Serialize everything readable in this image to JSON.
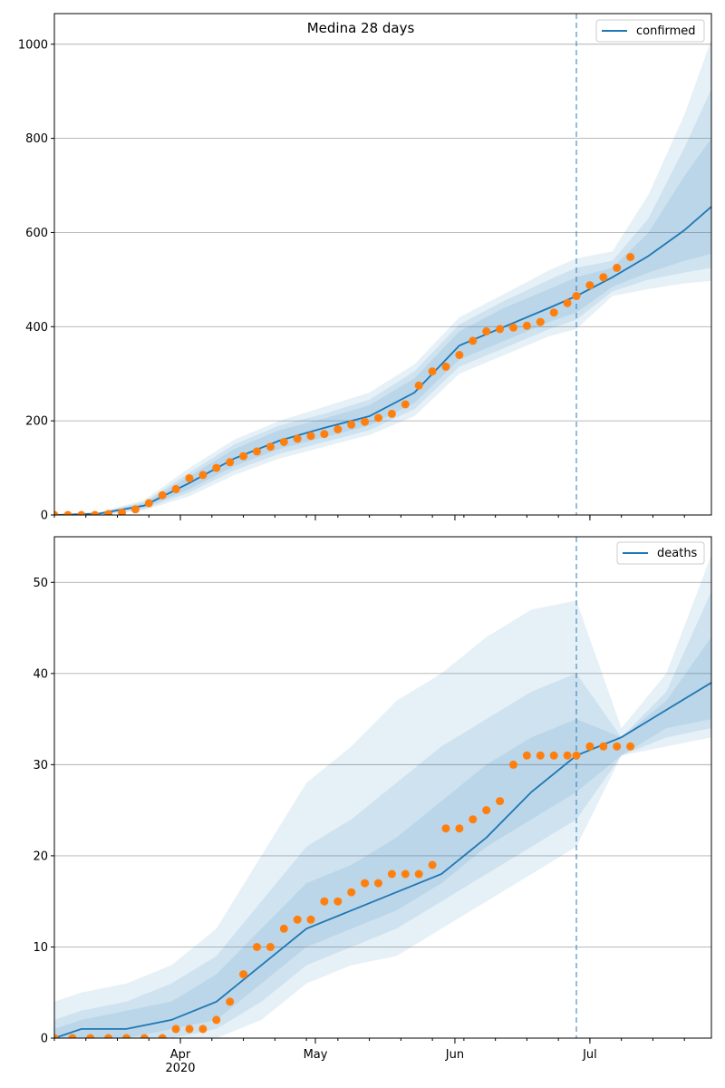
{
  "colors": {
    "model_line": "#1f77b4",
    "observed_points": "#ff7f0e",
    "band": "#1f77b4",
    "forecast_line": "#1f77b4",
    "grid": "#b0b0b0"
  },
  "chart_data": [
    {
      "type": "line",
      "title": "Medina 28 days",
      "legend": {
        "entries": [
          "confirmed"
        ],
        "placement": "top-right"
      },
      "x_range": [
        "2020-03-04",
        "2020-07-28"
      ],
      "x_ticks": [
        {
          "date": "2020-04-01",
          "label": "Apr",
          "sublabel": "2020"
        },
        {
          "date": "2020-05-01",
          "label": "May"
        },
        {
          "date": "2020-06-01",
          "label": "Jun"
        },
        {
          "date": "2020-07-01",
          "label": "Jul"
        }
      ],
      "ylim": [
        0,
        1065
      ],
      "y_ticks": [
        0,
        200,
        400,
        600,
        800,
        1000
      ],
      "grid": "horizontal",
      "forecast_start": "2020-06-28",
      "model_series": {
        "name": "confirmed",
        "x": [
          "2020-03-04",
          "2020-03-14",
          "2020-03-24",
          "2020-04-03",
          "2020-04-13",
          "2020-04-23",
          "2020-05-03",
          "2020-05-13",
          "2020-05-23",
          "2020-06-02",
          "2020-06-12",
          "2020-06-22",
          "2020-06-28",
          "2020-07-06",
          "2020-07-14",
          "2020-07-22",
          "2020-07-28"
        ],
        "y": [
          0,
          3,
          20,
          68,
          120,
          158,
          185,
          210,
          260,
          360,
          400,
          440,
          465,
          505,
          550,
          605,
          655
        ],
        "bands": [
          {
            "low": [
              0,
              0,
              10,
              40,
              85,
              120,
              145,
              170,
              210,
              300,
              340,
              380,
              395,
              465,
              480,
              492,
              497
            ],
            "high": [
              0,
              6,
              32,
              100,
              160,
              200,
              230,
              260,
              320,
              420,
              470,
              520,
              545,
              560,
              680,
              850,
              1010
            ]
          },
          {
            "low": [
              0,
              0,
              13,
              48,
              95,
              130,
              155,
              180,
              225,
              315,
              355,
              395,
              415,
              475,
              500,
              515,
              525
            ],
            "high": [
              0,
              5,
              28,
              90,
              150,
              190,
              215,
              245,
              305,
              405,
              455,
              500,
              525,
              540,
              630,
              780,
              905
            ]
          },
          {
            "low": [
              0,
              1,
              16,
              55,
              104,
              140,
              165,
              190,
              238,
              330,
              370,
              410,
              430,
              485,
              515,
              540,
              555
            ],
            "high": [
              0,
              4,
              25,
              82,
              140,
              180,
              205,
              233,
              290,
              390,
              440,
              480,
              505,
              525,
              600,
              720,
              800
            ]
          }
        ]
      },
      "observed": {
        "x": [
          "2020-03-04",
          "2020-03-07",
          "2020-03-10",
          "2020-03-13",
          "2020-03-16",
          "2020-03-19",
          "2020-03-22",
          "2020-03-25",
          "2020-03-28",
          "2020-03-31",
          "2020-04-03",
          "2020-04-06",
          "2020-04-09",
          "2020-04-12",
          "2020-04-15",
          "2020-04-18",
          "2020-04-21",
          "2020-04-24",
          "2020-04-27",
          "2020-04-30",
          "2020-05-03",
          "2020-05-06",
          "2020-05-09",
          "2020-05-12",
          "2020-05-15",
          "2020-05-18",
          "2020-05-21",
          "2020-05-24",
          "2020-05-27",
          "2020-05-30",
          "2020-06-02",
          "2020-06-05",
          "2020-06-08",
          "2020-06-11",
          "2020-06-14",
          "2020-06-17",
          "2020-06-20",
          "2020-06-23",
          "2020-06-26",
          "2020-06-28",
          "2020-07-01",
          "2020-07-04",
          "2020-07-07",
          "2020-07-10"
        ],
        "y": [
          0,
          0,
          0,
          0,
          2,
          5,
          12,
          25,
          42,
          55,
          78,
          85,
          100,
          112,
          125,
          135,
          145,
          155,
          162,
          168,
          172,
          182,
          192,
          198,
          206,
          215,
          235,
          275,
          305,
          315,
          340,
          370,
          390,
          395,
          398,
          402,
          410,
          430,
          450,
          465,
          488,
          505,
          525,
          548
        ]
      }
    },
    {
      "type": "line",
      "title": "",
      "legend": {
        "entries": [
          "deaths"
        ],
        "placement": "top-right"
      },
      "x_range": [
        "2020-03-04",
        "2020-07-28"
      ],
      "x_ticks": [
        {
          "date": "2020-04-01",
          "label": "Apr",
          "sublabel": "2020"
        },
        {
          "date": "2020-05-01",
          "label": "May"
        },
        {
          "date": "2020-06-01",
          "label": "Jun"
        },
        {
          "date": "2020-07-01",
          "label": "Jul"
        }
      ],
      "ylim": [
        0,
        55
      ],
      "y_ticks": [
        0,
        10,
        20,
        30,
        40,
        50
      ],
      "grid": "horizontal",
      "forecast_start": "2020-06-28",
      "model_series": {
        "name": "deaths",
        "x": [
          "2020-03-04",
          "2020-03-10",
          "2020-03-20",
          "2020-03-30",
          "2020-04-09",
          "2020-04-19",
          "2020-04-29",
          "2020-05-09",
          "2020-05-19",
          "2020-05-29",
          "2020-06-08",
          "2020-06-18",
          "2020-06-28",
          "2020-07-08",
          "2020-07-18",
          "2020-07-28"
        ],
        "y": [
          0,
          1,
          1,
          2,
          4,
          8,
          12,
          14,
          16,
          18,
          22,
          27,
          31,
          33,
          36,
          39
        ],
        "bands": [
          {
            "low": [
              0,
              0,
              0,
              0,
              0,
              2,
              6,
              8,
              9,
              12,
              15,
              18,
              21,
              31,
              32,
              33
            ],
            "high": [
              4,
              5,
              6,
              8,
              12,
              20,
              28,
              32,
              37,
              40,
              44,
              47,
              48,
              34,
              40,
              53
            ]
          },
          {
            "low": [
              0,
              0,
              0,
              0,
              1,
              4,
              8,
              10,
              12,
              15,
              18,
              21,
              24,
              31,
              33,
              34
            ],
            "high": [
              2,
              3,
              4,
              6,
              9,
              15,
              21,
              24,
              28,
              32,
              35,
              38,
              40,
              33,
              38,
              49
            ]
          },
          {
            "low": [
              0,
              0,
              0,
              1,
              2,
              6,
              10,
              12,
              14,
              17,
              21,
              24,
              27,
              31,
              34,
              35
            ],
            "high": [
              1,
              2,
              3,
              4,
              7,
              12,
              17,
              19,
              22,
              26,
              30,
              33,
              35,
              33,
              37,
              44
            ]
          }
        ]
      },
      "observed": {
        "x": [
          "2020-03-04",
          "2020-03-08",
          "2020-03-12",
          "2020-03-16",
          "2020-03-20",
          "2020-03-24",
          "2020-03-28",
          "2020-03-31",
          "2020-04-03",
          "2020-04-06",
          "2020-04-09",
          "2020-04-12",
          "2020-04-15",
          "2020-04-18",
          "2020-04-21",
          "2020-04-24",
          "2020-04-27",
          "2020-04-30",
          "2020-05-03",
          "2020-05-06",
          "2020-05-09",
          "2020-05-12",
          "2020-05-15",
          "2020-05-18",
          "2020-05-21",
          "2020-05-24",
          "2020-05-27",
          "2020-05-30",
          "2020-06-02",
          "2020-06-05",
          "2020-06-08",
          "2020-06-11",
          "2020-06-14",
          "2020-06-17",
          "2020-06-20",
          "2020-06-23",
          "2020-06-26",
          "2020-06-28",
          "2020-07-01",
          "2020-07-04",
          "2020-07-07",
          "2020-07-10"
        ],
        "y": [
          0,
          0,
          0,
          0,
          0,
          0,
          0,
          1,
          1,
          1,
          2,
          4,
          7,
          10,
          10,
          12,
          13,
          13,
          15,
          15,
          16,
          17,
          17,
          18,
          18,
          18,
          19,
          23,
          23,
          24,
          25,
          26,
          30,
          31,
          31,
          31,
          31,
          31,
          32,
          32,
          32,
          32
        ]
      }
    }
  ]
}
